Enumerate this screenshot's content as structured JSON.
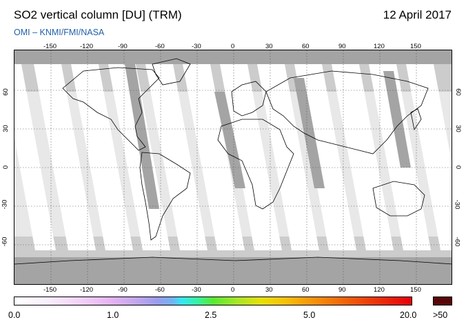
{
  "header": {
    "title": "SO2 vertical column [DU] (TRM)",
    "date": "12 April 2017",
    "subtitle": "OMI  –  KNMI/FMI/NASA"
  },
  "map": {
    "longitude_ticks": [
      "-150",
      "-120",
      "-90",
      "-60",
      "-30",
      "0",
      "30",
      "60",
      "90",
      "120",
      "150"
    ],
    "latitude_ticks": [
      "60",
      "30",
      "0",
      "-30",
      "-60"
    ],
    "colors": {
      "background_fill": "#cccccc",
      "swath_fill": "#ffffff",
      "dark_gap_fill": "#a4a4a4",
      "coastline": "#000000",
      "grid": "#555555"
    }
  },
  "colorbar": {
    "labels": [
      "0.0",
      "1.0",
      "2.5",
      "5.0",
      "20.0"
    ],
    "over_label": ">50",
    "over_color": "#5a0608",
    "unit": "DU"
  }
}
